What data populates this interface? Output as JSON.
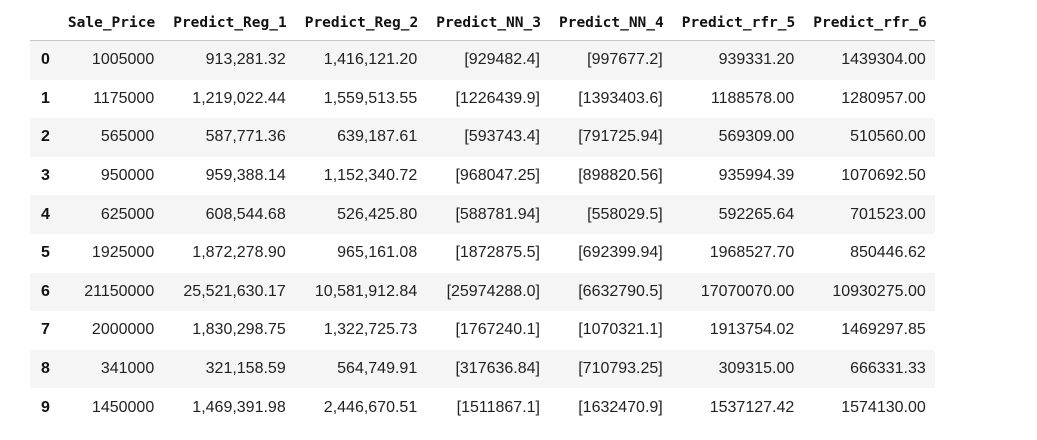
{
  "table": {
    "columns": [
      "Sale_Price",
      "Predict_Reg_1",
      "Predict_Reg_2",
      "Predict_NN_3",
      "Predict_NN_4",
      "Predict_rfr_5",
      "Predict_rfr_6"
    ],
    "rows": [
      {
        "index": "0",
        "cells": [
          "1005000",
          "913,281.32",
          "1,416,121.20",
          "[929482.4]",
          "[997677.2]",
          "939331.20",
          "1439304.00"
        ]
      },
      {
        "index": "1",
        "cells": [
          "1175000",
          "1,219,022.44",
          "1,559,513.55",
          "[1226439.9]",
          "[1393403.6]",
          "1188578.00",
          "1280957.00"
        ]
      },
      {
        "index": "2",
        "cells": [
          "565000",
          "587,771.36",
          "639,187.61",
          "[593743.4]",
          "[791725.94]",
          "569309.00",
          "510560.00"
        ]
      },
      {
        "index": "3",
        "cells": [
          "950000",
          "959,388.14",
          "1,152,340.72",
          "[968047.25]",
          "[898820.56]",
          "935994.39",
          "1070692.50"
        ]
      },
      {
        "index": "4",
        "cells": [
          "625000",
          "608,544.68",
          "526,425.80",
          "[588781.94]",
          "[558029.5]",
          "592265.64",
          "701523.00"
        ]
      },
      {
        "index": "5",
        "cells": [
          "1925000",
          "1,872,278.90",
          "965,161.08",
          "[1872875.5]",
          "[692399.94]",
          "1968527.70",
          "850446.62"
        ]
      },
      {
        "index": "6",
        "cells": [
          "21150000",
          "25,521,630.17",
          "10,581,912.84",
          "[25974288.0]",
          "[6632790.5]",
          "17070070.00",
          "10930275.00"
        ]
      },
      {
        "index": "7",
        "cells": [
          "2000000",
          "1,830,298.75",
          "1,322,725.73",
          "[1767240.1]",
          "[1070321.1]",
          "1913754.02",
          "1469297.85"
        ]
      },
      {
        "index": "8",
        "cells": [
          "341000",
          "321,158.59",
          "564,749.91",
          "[317636.84]",
          "[710793.25]",
          "309315.00",
          "666331.33"
        ]
      },
      {
        "index": "9",
        "cells": [
          "1450000",
          "1,469,391.98",
          "2,446,670.51",
          "[1511867.1]",
          "[1632470.9]",
          "1537127.42",
          "1574130.00"
        ]
      }
    ]
  }
}
